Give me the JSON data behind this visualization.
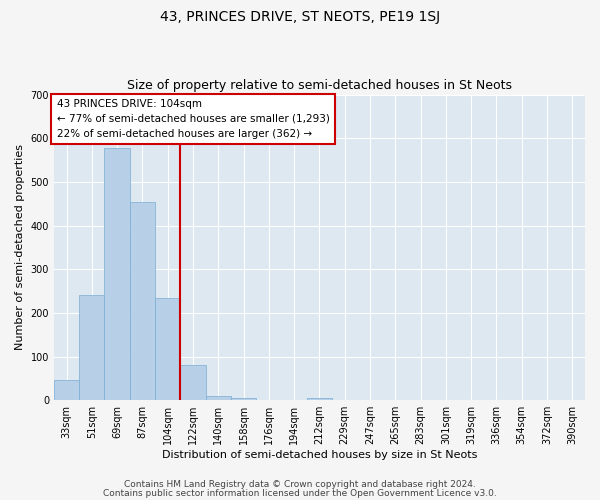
{
  "title": "43, PRINCES DRIVE, ST NEOTS, PE19 1SJ",
  "subtitle": "Size of property relative to semi-detached houses in St Neots",
  "xlabel": "Distribution of semi-detached houses by size in St Neots",
  "ylabel": "Number of semi-detached properties",
  "footer_line1": "Contains HM Land Registry data © Crown copyright and database right 2024.",
  "footer_line2": "Contains public sector information licensed under the Open Government Licence v3.0.",
  "annotation_line1": "43 PRINCES DRIVE: 104sqm",
  "annotation_line2": "← 77% of semi-detached houses are smaller (1,293)",
  "annotation_line3": "22% of semi-detached houses are larger (362) →",
  "bar_labels": [
    "33sqm",
    "51sqm",
    "69sqm",
    "87sqm",
    "104sqm",
    "122sqm",
    "140sqm",
    "158sqm",
    "176sqm",
    "194sqm",
    "212sqm",
    "229sqm",
    "247sqm",
    "265sqm",
    "283sqm",
    "301sqm",
    "319sqm",
    "336sqm",
    "354sqm",
    "372sqm",
    "390sqm"
  ],
  "bar_values": [
    47,
    242,
    578,
    453,
    233,
    80,
    10,
    5,
    0,
    0,
    5,
    0,
    0,
    0,
    0,
    0,
    0,
    0,
    0,
    0,
    0
  ],
  "bar_color": "#b8cfe8",
  "bar_edgecolor": "#7aadd4",
  "vline_color": "#cc0000",
  "vline_index": 4,
  "ylim": [
    0,
    700
  ],
  "yticks": [
    0,
    100,
    200,
    300,
    400,
    500,
    600,
    700
  ],
  "bg_color": "#dde8f0",
  "grid_color": "#ffffff",
  "annotation_box_edgecolor": "#cc0000",
  "title_fontsize": 10,
  "subtitle_fontsize": 9,
  "axis_label_fontsize": 8,
  "tick_fontsize": 7,
  "annotation_fontsize": 7.5,
  "footer_fontsize": 6.5
}
